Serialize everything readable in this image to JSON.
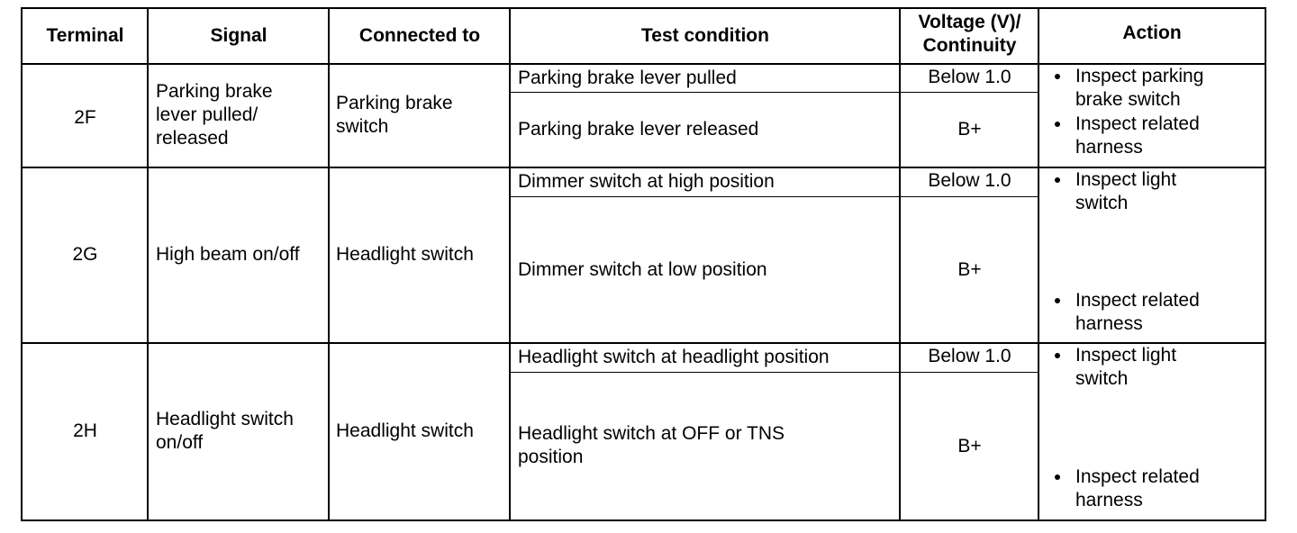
{
  "headers": {
    "terminal": "Terminal",
    "signal": "Signal",
    "connected_to": "Connected to",
    "test_condition": "Test condition",
    "voltage_line1": "Voltage (V)/",
    "voltage_line2": "Continuity",
    "action": "Action"
  },
  "rows": [
    {
      "terminal": "2F",
      "signal": [
        "Parking brake",
        "lever pulled/",
        "released"
      ],
      "connected_to": [
        "Parking brake",
        "switch"
      ],
      "conditions": [
        {
          "test": [
            "Parking brake lever pulled"
          ],
          "voltage": "Below 1.0"
        },
        {
          "test": [
            "Parking brake lever released"
          ],
          "voltage": "B+"
        }
      ],
      "actions": [
        [
          "Inspect parking",
          "brake switch"
        ],
        [
          "Inspect related",
          "harness"
        ]
      ]
    },
    {
      "terminal": "2G",
      "signal": [
        "High beam on/off"
      ],
      "connected_to": [
        "Headlight switch"
      ],
      "conditions": [
        {
          "test": [
            "Dimmer switch at high position"
          ],
          "voltage": "Below 1.0"
        },
        {
          "test": [
            "Dimmer switch at low position"
          ],
          "voltage": "B+"
        }
      ],
      "actions": [
        [
          "Inspect light",
          "switch"
        ],
        [
          "Inspect related",
          "harness"
        ]
      ]
    },
    {
      "terminal": "2H",
      "signal": [
        "Headlight switch",
        "on/off"
      ],
      "connected_to": [
        "Headlight switch"
      ],
      "conditions": [
        {
          "test": [
            "Headlight switch at headlight position"
          ],
          "voltage": "Below 1.0"
        },
        {
          "test": [
            "Headlight switch at OFF or TNS",
            "position"
          ],
          "voltage": "B+"
        }
      ],
      "actions": [
        [
          "Inspect light",
          "switch"
        ],
        [
          "Inspect related",
          "harness"
        ]
      ]
    }
  ]
}
